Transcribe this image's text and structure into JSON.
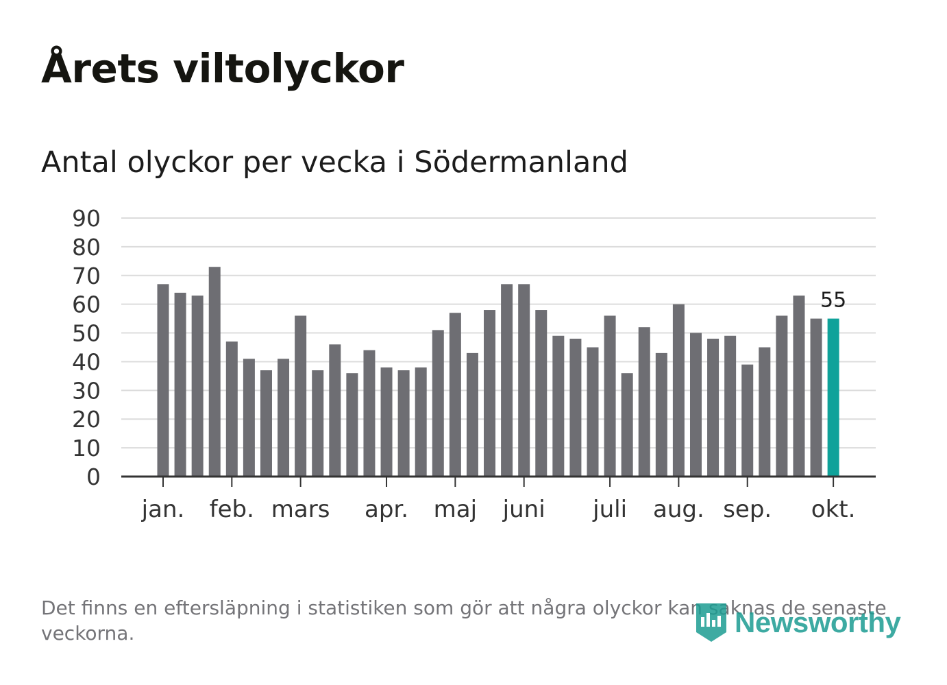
{
  "header": {
    "title": "Årets viltolyckor",
    "subtitle": "Antal olyckor per vecka i Södermanland"
  },
  "footer": {
    "note": "Det finns en eftersläpning i statistiken som gör att några olyckor kan saknas de senaste veckorna.",
    "brand": "Newsworthy"
  },
  "colors": {
    "bar": "#6e6e73",
    "highlight": "#0fa29a",
    "grid": "#dcdcdc",
    "axis": "#333333",
    "text": "#333333"
  },
  "chart_data": {
    "type": "bar",
    "title": "Antal olyckor per vecka i Södermanland",
    "xlabel": "",
    "ylabel": "",
    "ylim": [
      0,
      90
    ],
    "yticks": [
      0,
      10,
      20,
      30,
      40,
      50,
      60,
      70,
      80,
      90
    ],
    "month_labels": [
      {
        "label": "jan.",
        "week_index": 0
      },
      {
        "label": "feb.",
        "week_index": 4
      },
      {
        "label": "mars",
        "week_index": 8
      },
      {
        "label": "apr.",
        "week_index": 13
      },
      {
        "label": "maj",
        "week_index": 17
      },
      {
        "label": "juni",
        "week_index": 21
      },
      {
        "label": "juli",
        "week_index": 26
      },
      {
        "label": "aug.",
        "week_index": 30
      },
      {
        "label": "sep.",
        "week_index": 34
      },
      {
        "label": "okt.",
        "week_index": 39
      }
    ],
    "values": [
      67,
      64,
      63,
      73,
      47,
      41,
      37,
      41,
      56,
      37,
      46,
      36,
      44,
      38,
      37,
      38,
      51,
      57,
      43,
      58,
      67,
      67,
      58,
      49,
      48,
      45,
      56,
      36,
      52,
      43,
      60,
      50,
      48,
      49,
      39,
      45,
      56,
      63,
      55,
      55
    ],
    "highlight_index": 39,
    "highlight_label": "55",
    "grid": true,
    "legend": "none"
  }
}
